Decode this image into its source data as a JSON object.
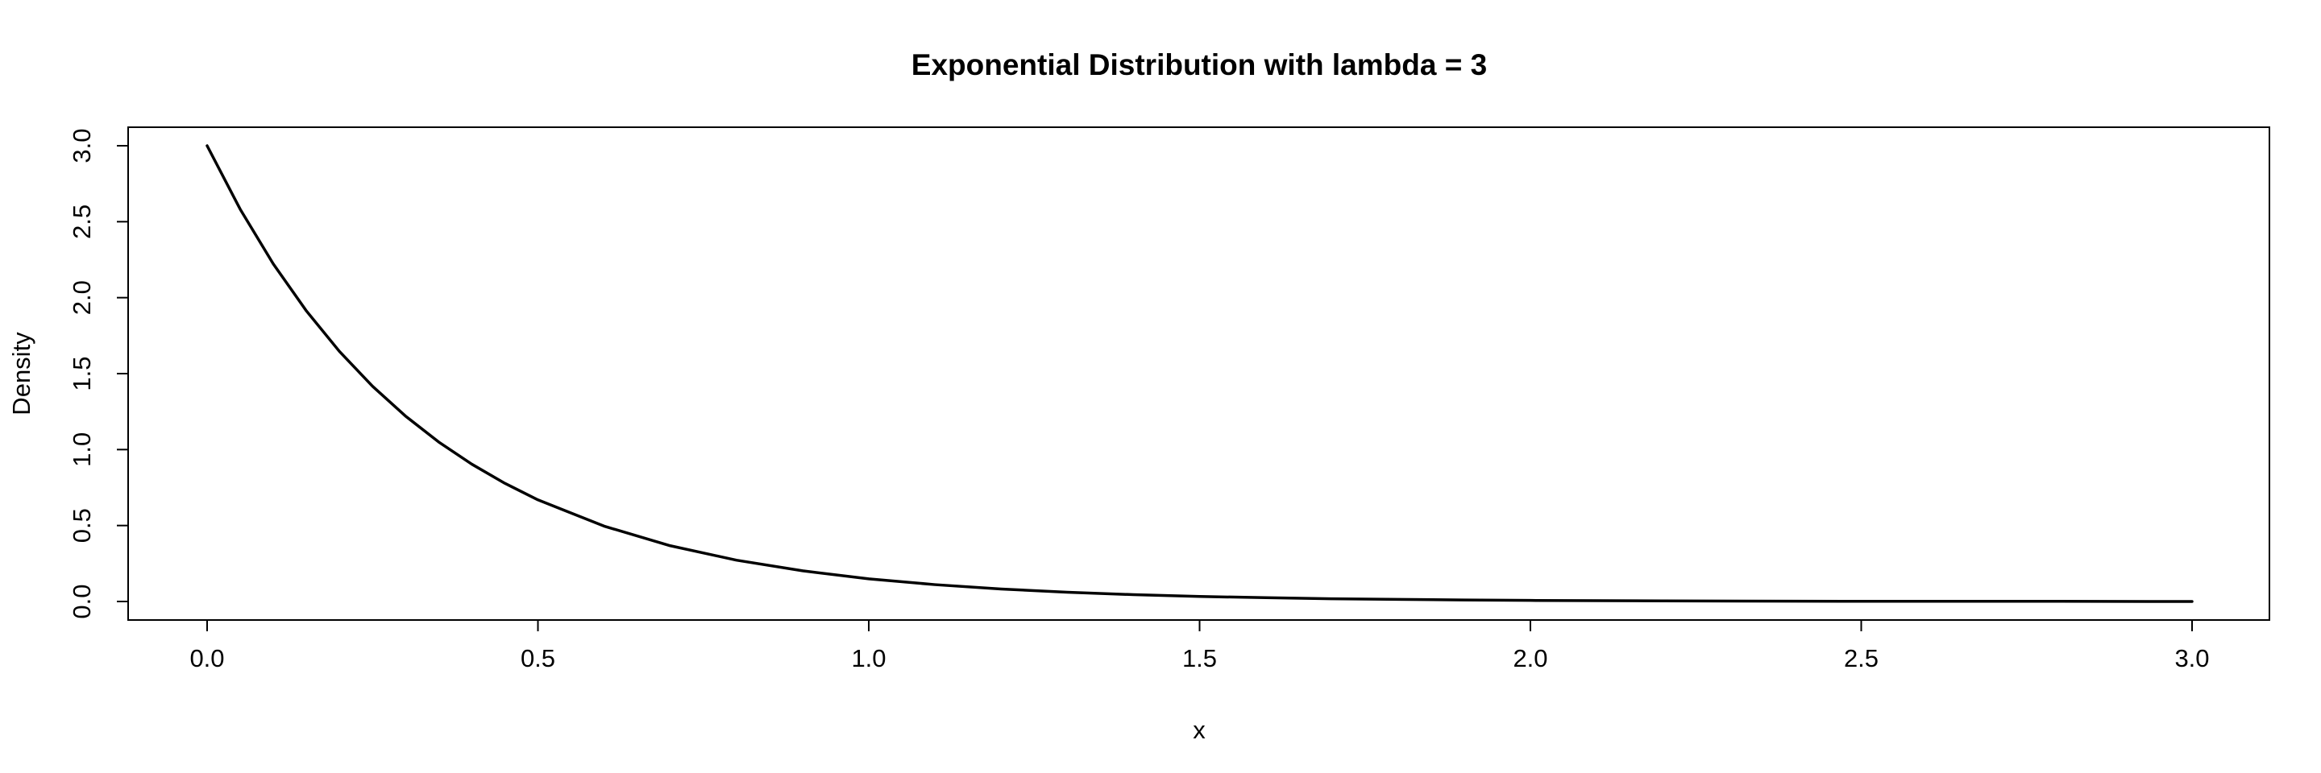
{
  "chart_data": {
    "type": "line",
    "title": "Exponential Distribution with lambda = 3",
    "xlabel": "x",
    "ylabel": "Density",
    "xlim": [
      0,
      3
    ],
    "ylim": [
      0,
      3
    ],
    "x_ticks": [
      0.0,
      0.5,
      1.0,
      1.5,
      2.0,
      2.5,
      3.0
    ],
    "x_tick_labels": [
      "0.0",
      "0.5",
      "1.0",
      "1.5",
      "2.0",
      "2.5",
      "3.0"
    ],
    "y_ticks": [
      0.0,
      0.5,
      1.0,
      1.5,
      2.0,
      2.5,
      3.0
    ],
    "y_tick_labels": [
      "0.0",
      "0.5",
      "1.0",
      "1.5",
      "2.0",
      "2.5",
      "3.0"
    ],
    "grid": false,
    "legend": "none",
    "line_color": "#000000",
    "series": [
      {
        "x": [
          0.0,
          0.05,
          0.1,
          0.15,
          0.2,
          0.25,
          0.3,
          0.35,
          0.4,
          0.45,
          0.5,
          0.6,
          0.7,
          0.8,
          0.9,
          1.0,
          1.1,
          1.2,
          1.3,
          1.4,
          1.5,
          1.6,
          1.7,
          1.8,
          1.9,
          2.0,
          2.2,
          2.4,
          2.6,
          2.8,
          3.0
        ],
        "y": [
          3.0,
          2.582,
          2.222,
          1.913,
          1.646,
          1.417,
          1.22,
          1.05,
          0.904,
          0.778,
          0.669,
          0.496,
          0.367,
          0.272,
          0.202,
          0.149,
          0.111,
          0.082,
          0.061,
          0.045,
          0.033,
          0.025,
          0.018,
          0.014,
          0.01,
          0.007,
          0.004,
          0.002,
          0.001,
          0.001,
          0.0
        ]
      }
    ]
  }
}
